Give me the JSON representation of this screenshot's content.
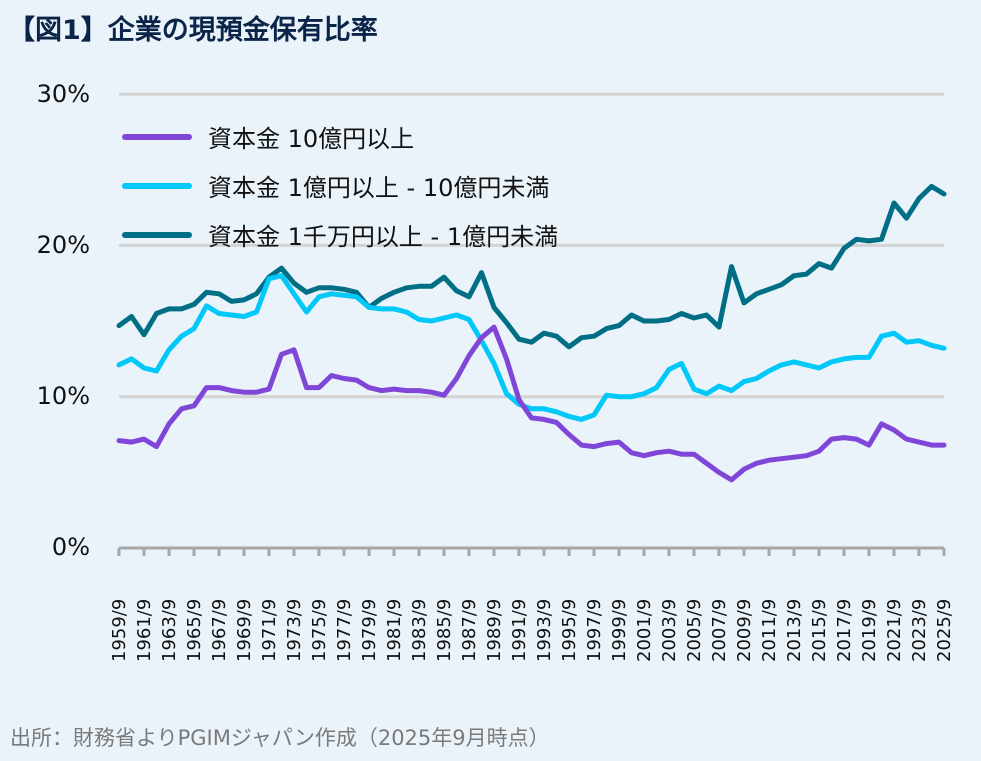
{
  "title": "【図1】企業の現預金保有比率",
  "source": "出所：財務省よりPGIMジャパン作成（2025年9月時点）",
  "colors": {
    "background": "#eaf3fa",
    "title": "#0b2548",
    "grid": "#d3d3d3",
    "axis": "#a6a6a6",
    "series_large": "#8046d8",
    "series_mid": "#00c8f8",
    "series_small": "#006f86"
  },
  "y_axis": {
    "ticks": [
      "0%",
      "10%",
      "20%",
      "30%"
    ]
  },
  "legend": {
    "items": [
      {
        "label": "資本金 10億円以上",
        "color": "#8046d8"
      },
      {
        "label": "資本金 1億円以上 - 10億円未満",
        "color": "#00c8f8"
      },
      {
        "label": "資本金 1千万円以上 - 1億円未満",
        "color": "#006f86"
      }
    ]
  },
  "x_axis": {
    "ticks": [
      "1959/9",
      "1961/9",
      "1963/9",
      "1965/9",
      "1967/9",
      "1969/9",
      "1971/9",
      "1973/9",
      "1975/9",
      "1977/9",
      "1979/9",
      "1981/9",
      "1983/9",
      "1985/9",
      "1987/9",
      "1989/9",
      "1991/9",
      "1993/9",
      "1995/9",
      "1997/9",
      "1999/9",
      "2001/9",
      "2003/9",
      "2005/9",
      "2007/9",
      "2009/9",
      "2011/9",
      "2013/9",
      "2015/9",
      "2017/9",
      "2019/9",
      "2021/9",
      "2023/9",
      "2025/9"
    ]
  },
  "chart_data": {
    "type": "line",
    "title": "【図1】企業の現預金保有比率",
    "xlabel": "",
    "ylabel": "",
    "ylim": [
      0,
      30
    ],
    "y_ticks": [
      0,
      10,
      20,
      30
    ],
    "grid": true,
    "legend_position": "top-left inside",
    "x": [
      1959.75,
      1960.75,
      1961.75,
      1962.75,
      1963.75,
      1964.75,
      1965.75,
      1966.75,
      1967.75,
      1968.75,
      1969.75,
      1970.75,
      1971.75,
      1972.75,
      1973.75,
      1974.75,
      1975.75,
      1976.75,
      1977.75,
      1978.75,
      1979.75,
      1980.75,
      1981.75,
      1982.75,
      1983.75,
      1984.75,
      1985.75,
      1986.75,
      1987.75,
      1988.75,
      1989.75,
      1990.75,
      1991.75,
      1992.75,
      1993.75,
      1994.75,
      1995.75,
      1996.75,
      1997.75,
      1998.75,
      1999.75,
      2000.75,
      2001.75,
      2002.75,
      2003.75,
      2004.75,
      2005.75,
      2006.75,
      2007.75,
      2008.75,
      2009.75,
      2010.75,
      2011.75,
      2012.75,
      2013.75,
      2014.75,
      2015.75,
      2016.75,
      2017.75,
      2018.75,
      2019.75,
      2020.75,
      2021.75,
      2022.75,
      2023.75,
      2024.75,
      2025.75
    ],
    "x_labels": [
      "1959/9",
      "1961/9",
      "1963/9",
      "1965/9",
      "1967/9",
      "1969/9",
      "1971/9",
      "1973/9",
      "1975/9",
      "1977/9",
      "1979/9",
      "1981/9",
      "1983/9",
      "1985/9",
      "1987/9",
      "1989/9",
      "1991/9",
      "1993/9",
      "1995/9",
      "1997/9",
      "1999/9",
      "2001/9",
      "2003/9",
      "2005/9",
      "2007/9",
      "2009/9",
      "2011/9",
      "2013/9",
      "2015/9",
      "2017/9",
      "2019/9",
      "2021/9",
      "2023/9",
      "2025/9"
    ],
    "series": [
      {
        "name": "資本金 10億円以上",
        "color": "#8046d8",
        "values": [
          7.1,
          7.0,
          7.2,
          6.7,
          8.2,
          9.2,
          9.4,
          10.6,
          10.6,
          10.4,
          10.3,
          10.3,
          10.5,
          12.8,
          13.1,
          10.6,
          10.6,
          11.4,
          11.2,
          11.1,
          10.6,
          10.4,
          10.5,
          10.4,
          10.4,
          10.3,
          10.1,
          11.2,
          12.7,
          13.9,
          14.6,
          12.5,
          9.8,
          8.6,
          8.5,
          8.3,
          7.5,
          6.8,
          6.7,
          6.9,
          7.0,
          6.3,
          6.1,
          6.3,
          6.4,
          6.2,
          6.2,
          5.6,
          5.0,
          4.5,
          5.2,
          5.6,
          5.8,
          5.9,
          6.0,
          6.1,
          6.4,
          7.2,
          7.3,
          7.2,
          6.8,
          8.2,
          7.8,
          7.2,
          7.0,
          6.8,
          6.8
        ]
      },
      {
        "name": "資本金 1億円以上 - 10億円未満",
        "color": "#00c8f8",
        "values": [
          12.1,
          12.5,
          11.9,
          11.7,
          13.1,
          14.0,
          14.5,
          16.0,
          15.5,
          15.4,
          15.3,
          15.6,
          17.8,
          18.0,
          16.8,
          15.6,
          16.6,
          16.8,
          16.7,
          16.6,
          15.9,
          15.8,
          15.8,
          15.6,
          15.1,
          15.0,
          15.2,
          15.4,
          15.1,
          13.7,
          12.2,
          10.2,
          9.5,
          9.2,
          9.2,
          9.0,
          8.7,
          8.5,
          8.8,
          10.1,
          10.0,
          10.0,
          10.2,
          10.6,
          11.8,
          12.2,
          10.5,
          10.2,
          10.7,
          10.4,
          11.0,
          11.2,
          11.7,
          12.1,
          12.3,
          12.1,
          11.9,
          12.3,
          12.5,
          12.6,
          12.6,
          14.0,
          14.2,
          13.6,
          13.7,
          13.4,
          13.2
        ]
      },
      {
        "name": "資本金 1千万円以上 - 1億円未満",
        "color": "#006f86",
        "values": [
          14.7,
          15.3,
          14.1,
          15.5,
          15.8,
          15.8,
          16.1,
          16.9,
          16.8,
          16.3,
          16.4,
          16.8,
          17.9,
          18.5,
          17.5,
          16.9,
          17.2,
          17.2,
          17.1,
          16.9,
          15.9,
          16.5,
          16.9,
          17.2,
          17.3,
          17.3,
          17.9,
          17.0,
          16.6,
          18.2,
          15.9,
          14.9,
          13.8,
          13.6,
          14.2,
          14.0,
          13.3,
          13.9,
          14.0,
          14.5,
          14.7,
          15.4,
          15.0,
          15.0,
          15.1,
          15.5,
          15.2,
          15.4,
          14.6,
          18.6,
          16.2,
          16.8,
          17.1,
          17.4,
          18.0,
          18.1,
          18.8,
          18.5,
          19.8,
          20.4,
          20.3,
          20.4,
          22.8,
          21.8,
          23.1,
          23.9,
          23.4
        ]
      }
    ]
  }
}
